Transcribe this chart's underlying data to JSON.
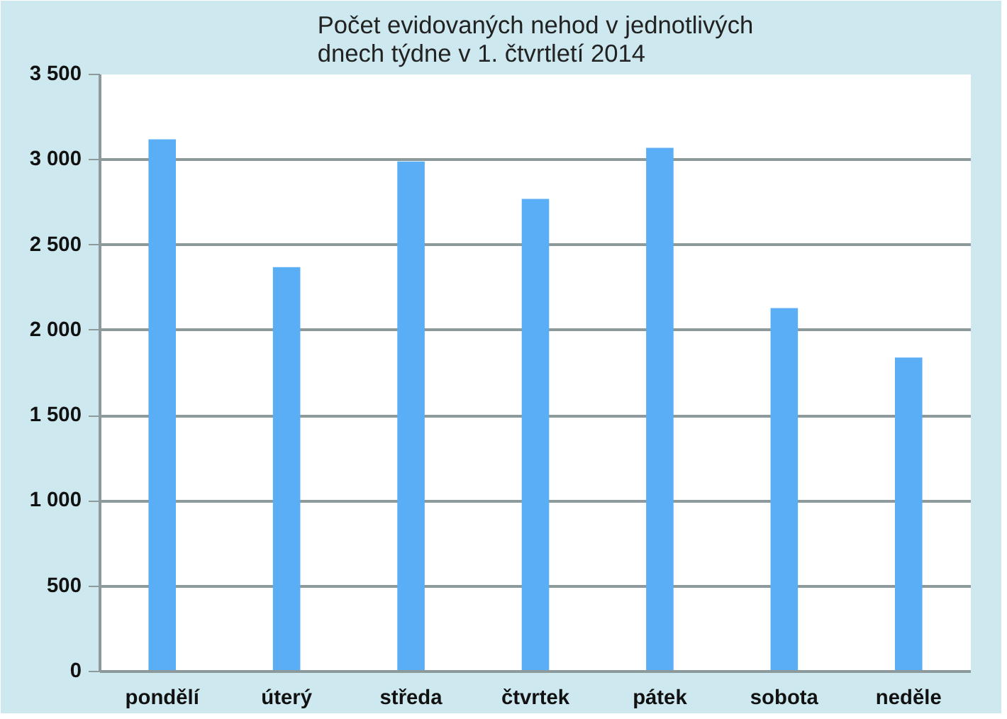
{
  "chart_data": {
    "type": "bar",
    "title": "Počet evidovaných nehod v jednotlivých dnech týdne v 1. čtvrtletí 2014",
    "categories": [
      "pondělí",
      "úterý",
      "středa",
      "čtvrtek",
      "pátek",
      "sobota",
      "neděle"
    ],
    "values": [
      3120,
      2370,
      2990,
      2770,
      3070,
      2130,
      1840
    ],
    "color": "#5aaef5",
    "ylim": [
      0,
      3500
    ],
    "yticks": [
      0,
      500,
      {
        "value": 1000,
        "label": "1 000"
      },
      {
        "value": 1500,
        "label": "1 500"
      },
      {
        "value": 2000,
        "label": "2 000"
      },
      {
        "value": 2500,
        "label": "2 500"
      },
      {
        "value": 3000,
        "label": "3 000"
      },
      {
        "value": 3500,
        "label": "3 500"
      }
    ],
    "grid": "y"
  }
}
